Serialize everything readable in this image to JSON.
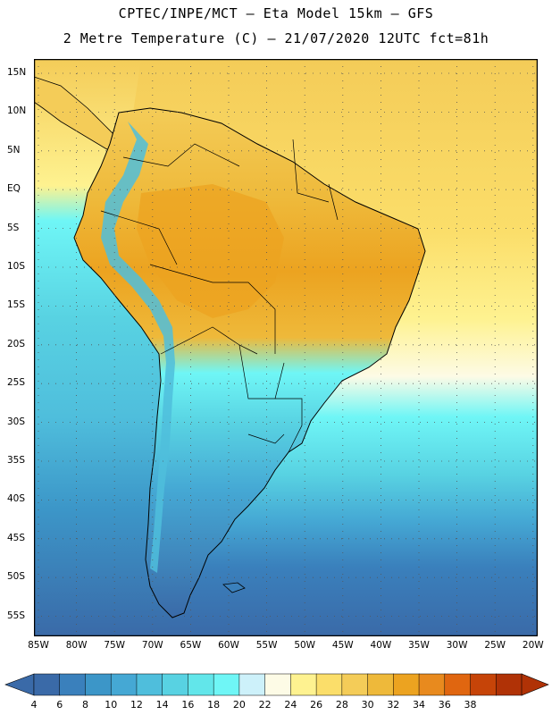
{
  "header": {
    "title_line1": "CPTEC/INPE/MCT –  Eta Model 15km – GFS",
    "title_line2": "2 Metre Temperature (C) – 21/07/2020 12UTC fct=81h"
  },
  "axes": {
    "lat_labels": [
      "15N",
      "10N",
      "5N",
      "EQ",
      "5S",
      "10S",
      "15S",
      "20S",
      "25S",
      "30S",
      "35S",
      "40S",
      "45S",
      "50S",
      "55S"
    ],
    "lon_labels": [
      "85W",
      "80W",
      "75W",
      "70W",
      "65W",
      "60W",
      "55W",
      "50W",
      "45W",
      "40W",
      "35W",
      "30W",
      "25W",
      "20W"
    ]
  },
  "colorbar": {
    "labels": [
      "4",
      "6",
      "8",
      "10",
      "12",
      "14",
      "16",
      "18",
      "20",
      "22",
      "24",
      "26",
      "28",
      "30",
      "32",
      "34",
      "36",
      "38"
    ],
    "colors": [
      "#3a6aa8",
      "#3a80bc",
      "#3c96c8",
      "#45a8d4",
      "#4fbedc",
      "#58d2e2",
      "#62e6ea",
      "#6ff6f6",
      "#cdf1fa",
      "#fdfbe6",
      "#fef290",
      "#fbde6a",
      "#f4cc58",
      "#eeb93a",
      "#eca320",
      "#e88a1e",
      "#e06610",
      "#c64408",
      "#b03206"
    ],
    "left_arrow_color": "#3a6aa8",
    "right_arrow_color": "#b03206"
  },
  "map": {
    "ocean_gradient_colors": [
      "#f4cc58",
      "#fef290",
      "#fdfbe6",
      "#6ff6f6",
      "#58d2e2",
      "#45a8d4",
      "#3a80bc",
      "#3a6aa8"
    ],
    "land_hot_color": "#eca320",
    "andes_color": "#4fbedc"
  }
}
